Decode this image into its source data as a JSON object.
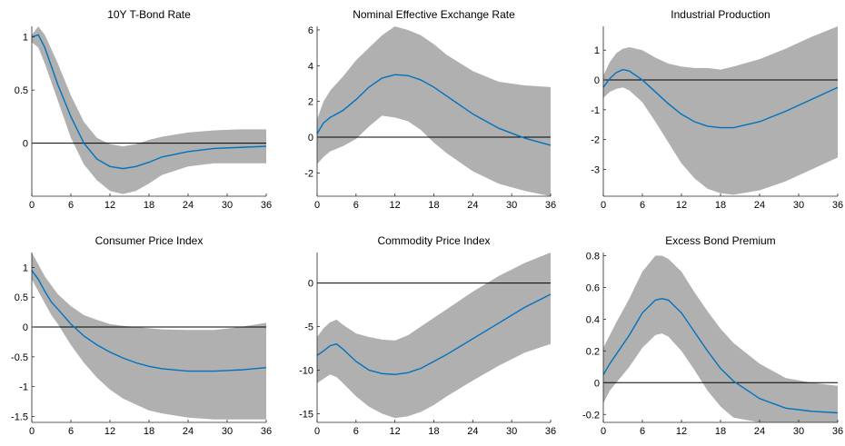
{
  "chart_data": [
    {
      "type": "area",
      "title": "10Y T-Bond Rate",
      "xlim": [
        0,
        36
      ],
      "ylim": [
        -0.5,
        1.1
      ],
      "xticks": [
        "0",
        "6",
        "12",
        "18",
        "24",
        "30",
        "36"
      ],
      "yticks": [
        "1",
        "0.5",
        "0",
        ""
      ],
      "ytick_values": [
        1,
        0.5,
        0
      ],
      "x": [
        0,
        1,
        2,
        4,
        6,
        8,
        10,
        12,
        14,
        16,
        18,
        20,
        24,
        28,
        32,
        36
      ],
      "median": [
        1.0,
        1.02,
        0.9,
        0.55,
        0.25,
        0.0,
        -0.15,
        -0.22,
        -0.24,
        -0.22,
        -0.18,
        -0.13,
        -0.08,
        -0.05,
        -0.04,
        -0.03
      ],
      "lower": [
        0.95,
        0.9,
        0.75,
        0.4,
        0.05,
        -0.2,
        -0.35,
        -0.45,
        -0.48,
        -0.45,
        -0.38,
        -0.3,
        -0.22,
        -0.19,
        -0.19,
        -0.19
      ],
      "upper": [
        1.02,
        1.1,
        1.02,
        0.75,
        0.45,
        0.2,
        0.05,
        -0.01,
        -0.03,
        -0.01,
        0.03,
        0.06,
        0.1,
        0.12,
        0.13,
        0.13
      ],
      "zero_line": 0
    },
    {
      "type": "area",
      "title": "Nominal Effective Exchange Rate",
      "xlim": [
        0,
        36
      ],
      "ylim": [
        -3.3,
        6.2
      ],
      "xticks": [
        "0",
        "6",
        "12",
        "18",
        "24",
        "30",
        "36"
      ],
      "yticks": [
        "6",
        "4",
        "2",
        "0",
        "-2"
      ],
      "ytick_values": [
        6,
        4,
        2,
        0,
        -2
      ],
      "x": [
        0,
        1,
        2,
        4,
        6,
        8,
        10,
        12,
        14,
        16,
        18,
        20,
        24,
        28,
        32,
        36
      ],
      "median": [
        0.2,
        0.8,
        1.1,
        1.5,
        2.1,
        2.8,
        3.3,
        3.5,
        3.45,
        3.2,
        2.8,
        2.3,
        1.3,
        0.5,
        -0.05,
        -0.45
      ],
      "lower": [
        -1.5,
        -1.1,
        -0.8,
        -0.5,
        -0.1,
        0.6,
        1.2,
        1.1,
        0.9,
        0.4,
        -0.3,
        -0.9,
        -1.9,
        -2.6,
        -3.0,
        -3.3
      ],
      "upper": [
        1.0,
        2.0,
        2.6,
        3.4,
        4.3,
        5.0,
        5.7,
        6.2,
        6.0,
        5.7,
        5.2,
        4.6,
        3.7,
        3.1,
        2.9,
        2.8
      ],
      "zero_line": 0
    },
    {
      "type": "area",
      "title": "Industrial Production",
      "xlim": [
        0,
        36
      ],
      "ylim": [
        -3.9,
        1.8
      ],
      "xticks": [
        "0",
        "6",
        "12",
        "18",
        "24",
        "30",
        "36"
      ],
      "yticks": [
        "1",
        "0",
        "-1",
        "-2",
        "-3"
      ],
      "ytick_values": [
        1,
        0,
        -1,
        -2,
        -3
      ],
      "x": [
        0,
        1,
        2,
        3,
        4,
        6,
        8,
        10,
        12,
        14,
        16,
        18,
        20,
        24,
        28,
        32,
        36
      ],
      "median": [
        -0.25,
        0.05,
        0.25,
        0.35,
        0.3,
        0.0,
        -0.4,
        -0.8,
        -1.15,
        -1.4,
        -1.55,
        -1.6,
        -1.6,
        -1.4,
        -1.05,
        -0.65,
        -0.25
      ],
      "lower": [
        -0.6,
        -0.4,
        -0.3,
        -0.25,
        -0.35,
        -0.75,
        -1.4,
        -2.1,
        -2.8,
        -3.3,
        -3.65,
        -3.8,
        -3.85,
        -3.7,
        -3.4,
        -3.0,
        -2.6
      ],
      "upper": [
        0.15,
        0.6,
        0.9,
        1.05,
        1.1,
        1.0,
        0.75,
        0.55,
        0.45,
        0.4,
        0.4,
        0.35,
        0.45,
        0.7,
        1.05,
        1.45,
        1.8
      ],
      "zero_line": 0
    },
    {
      "type": "area",
      "title": "Consumer Price Index",
      "xlim": [
        0,
        36
      ],
      "ylim": [
        -1.6,
        1.25
      ],
      "xticks": [
        "0",
        "6",
        "12",
        "18",
        "24",
        "30",
        "36"
      ],
      "yticks": [
        "1",
        "0.5",
        "0",
        "-0.5",
        "-1",
        "-1.5"
      ],
      "ytick_values": [
        1,
        0.5,
        0,
        -0.5,
        -1,
        -1.5
      ],
      "x": [
        0,
        1,
        2,
        3,
        4,
        6,
        8,
        10,
        12,
        14,
        16,
        18,
        20,
        24,
        28,
        32,
        36
      ],
      "median": [
        0.95,
        0.8,
        0.6,
        0.42,
        0.3,
        0.05,
        -0.15,
        -0.3,
        -0.42,
        -0.52,
        -0.6,
        -0.66,
        -0.7,
        -0.74,
        -0.74,
        -0.72,
        -0.68
      ],
      "lower": [
        0.8,
        0.6,
        0.4,
        0.2,
        0.05,
        -0.3,
        -0.6,
        -0.85,
        -1.05,
        -1.2,
        -1.3,
        -1.4,
        -1.45,
        -1.52,
        -1.55,
        -1.55,
        -1.55
      ],
      "upper": [
        1.25,
        1.05,
        0.85,
        0.7,
        0.55,
        0.35,
        0.2,
        0.12,
        0.05,
        0.02,
        0.0,
        -0.02,
        -0.04,
        -0.05,
        -0.05,
        0.0,
        0.07
      ],
      "zero_line": 0
    },
    {
      "type": "area",
      "title": "Commodity Price Index",
      "xlim": [
        0,
        36
      ],
      "ylim": [
        -16,
        3.5
      ],
      "xticks": [
        "0",
        "6",
        "12",
        "18",
        "24",
        "30",
        "36"
      ],
      "yticks": [
        "0",
        "-5",
        "-10",
        "-15"
      ],
      "ytick_values": [
        0,
        -5,
        -10,
        -15
      ],
      "x": [
        0,
        1,
        2,
        3,
        4,
        6,
        8,
        10,
        12,
        14,
        16,
        18,
        20,
        24,
        28,
        32,
        36
      ],
      "median": [
        -8.3,
        -7.8,
        -7.2,
        -7.0,
        -7.6,
        -9.0,
        -10.0,
        -10.4,
        -10.5,
        -10.3,
        -9.8,
        -9.0,
        -8.2,
        -6.4,
        -4.6,
        -2.8,
        -1.3
      ],
      "lower": [
        -11.5,
        -11.0,
        -10.5,
        -10.8,
        -11.5,
        -13.0,
        -14.2,
        -15.0,
        -15.5,
        -15.3,
        -14.8,
        -14.0,
        -13.0,
        -11.2,
        -9.5,
        -8.0,
        -7.0
      ],
      "upper": [
        -6.2,
        -5.2,
        -4.5,
        -4.2,
        -4.8,
        -5.8,
        -6.2,
        -6.5,
        -6.6,
        -6.0,
        -5.0,
        -4.0,
        -3.0,
        -1.0,
        0.8,
        2.3,
        3.5
      ],
      "zero_line": 0
    },
    {
      "type": "area",
      "title": "Excess Bond Premium",
      "xlim": [
        0,
        36
      ],
      "ylim": [
        -0.25,
        0.82
      ],
      "xticks": [
        "0",
        "6",
        "12",
        "18",
        "24",
        "30",
        "36"
      ],
      "yticks": [
        "0.8",
        "0.6",
        "0.4",
        "0.2",
        "0",
        "-0.2"
      ],
      "ytick_values": [
        0.8,
        0.6,
        0.4,
        0.2,
        0,
        -0.2
      ],
      "x": [
        0,
        1,
        2,
        4,
        6,
        8,
        9,
        10,
        12,
        14,
        16,
        18,
        20,
        24,
        28,
        32,
        36
      ],
      "median": [
        0.05,
        0.12,
        0.18,
        0.3,
        0.44,
        0.52,
        0.53,
        0.52,
        0.44,
        0.32,
        0.2,
        0.09,
        0.01,
        -0.1,
        -0.16,
        -0.18,
        -0.19
      ],
      "lower": [
        -0.13,
        -0.05,
        0.0,
        0.1,
        0.22,
        0.3,
        0.31,
        0.29,
        0.2,
        0.08,
        -0.05,
        -0.15,
        -0.22,
        -0.25,
        -0.25,
        -0.25,
        -0.25
      ],
      "upper": [
        0.22,
        0.3,
        0.38,
        0.53,
        0.7,
        0.8,
        0.8,
        0.78,
        0.7,
        0.57,
        0.45,
        0.34,
        0.25,
        0.12,
        0.03,
        0.0,
        -0.02
      ],
      "zero_line": 0
    }
  ],
  "style": {
    "band_color": "#b0b0b0",
    "line_color": "#0072bd",
    "zero_line_color": "#000000",
    "axis_color": "#262626",
    "text_color": "#000000"
  }
}
